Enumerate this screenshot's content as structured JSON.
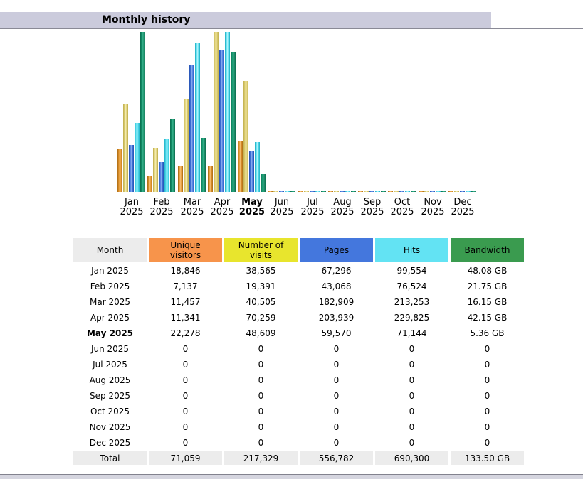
{
  "title": "Monthly history",
  "colors": {
    "title_bar_bg": "#CBCBDC",
    "divider": "#8A8A96",
    "series": {
      "unique_visitors": "#E2952E",
      "number_of_visits": "#DECF75",
      "pages": "#4477DD",
      "hits": "#55DDEE",
      "bandwidth": "#11926B"
    },
    "header_bg": {
      "month": "#ECECEC",
      "unique_visitors": "#F7944B",
      "number_of_visits": "#E8E52D",
      "pages": "#4477DD",
      "hits": "#63E3F3",
      "bandwidth": "#3A9B4F"
    },
    "total_row_bg": "#ECECEC"
  },
  "chart_data": {
    "type": "bar",
    "title": "Monthly history",
    "months": [
      "Jan",
      "Feb",
      "Mar",
      "Apr",
      "May",
      "Jun",
      "Jul",
      "Aug",
      "Sep",
      "Oct",
      "Nov",
      "Dec"
    ],
    "year": "2025",
    "current_month": "May 2025",
    "legend_position": "none",
    "grid": false,
    "series": [
      {
        "name": "Unique visitors",
        "values": [
          18846,
          7137,
          11457,
          11341,
          22278,
          0,
          0,
          0,
          0,
          0,
          0,
          0
        ]
      },
      {
        "name": "Number of visits",
        "values": [
          38565,
          19391,
          40505,
          70259,
          48609,
          0,
          0,
          0,
          0,
          0,
          0,
          0
        ]
      },
      {
        "name": "Pages",
        "values": [
          67296,
          43068,
          182909,
          203939,
          59570,
          0,
          0,
          0,
          0,
          0,
          0,
          0
        ]
      },
      {
        "name": "Hits",
        "values": [
          99554,
          76524,
          213253,
          229825,
          71144,
          0,
          0,
          0,
          0,
          0,
          0,
          0
        ]
      },
      {
        "name": "Bandwidth (GB)",
        "values": [
          48.08,
          21.75,
          16.15,
          42.15,
          5.36,
          0,
          0,
          0,
          0,
          0,
          0,
          0
        ]
      }
    ],
    "scale_groups_note": "visitors+visits share one scale; pages+hits share one scale; bandwidth has its own scale"
  },
  "table": {
    "headers": [
      {
        "key": "month",
        "label": "Month"
      },
      {
        "key": "unique_visitors",
        "label": "Unique visitors"
      },
      {
        "key": "number_of_visits",
        "label": "Number of visits"
      },
      {
        "key": "pages",
        "label": "Pages"
      },
      {
        "key": "hits",
        "label": "Hits"
      },
      {
        "key": "bandwidth",
        "label": "Bandwidth"
      }
    ],
    "rows": [
      {
        "month": "Jan 2025",
        "bold": false,
        "values": [
          "18,846",
          "38,565",
          "67,296",
          "99,554",
          "48.08 GB"
        ]
      },
      {
        "month": "Feb 2025",
        "bold": false,
        "values": [
          "7,137",
          "19,391",
          "43,068",
          "76,524",
          "21.75 GB"
        ]
      },
      {
        "month": "Mar 2025",
        "bold": false,
        "values": [
          "11,457",
          "40,505",
          "182,909",
          "213,253",
          "16.15 GB"
        ]
      },
      {
        "month": "Apr 2025",
        "bold": false,
        "values": [
          "11,341",
          "70,259",
          "203,939",
          "229,825",
          "42.15 GB"
        ]
      },
      {
        "month": "May 2025",
        "bold": true,
        "values": [
          "22,278",
          "48,609",
          "59,570",
          "71,144",
          "5.36 GB"
        ]
      },
      {
        "month": "Jun 2025",
        "bold": false,
        "values": [
          "0",
          "0",
          "0",
          "0",
          "0"
        ]
      },
      {
        "month": "Jul 2025",
        "bold": false,
        "values": [
          "0",
          "0",
          "0",
          "0",
          "0"
        ]
      },
      {
        "month": "Aug 2025",
        "bold": false,
        "values": [
          "0",
          "0",
          "0",
          "0",
          "0"
        ]
      },
      {
        "month": "Sep 2025",
        "bold": false,
        "values": [
          "0",
          "0",
          "0",
          "0",
          "0"
        ]
      },
      {
        "month": "Oct 2025",
        "bold": false,
        "values": [
          "0",
          "0",
          "0",
          "0",
          "0"
        ]
      },
      {
        "month": "Nov 2025",
        "bold": false,
        "values": [
          "0",
          "0",
          "0",
          "0",
          "0"
        ]
      },
      {
        "month": "Dec 2025",
        "bold": false,
        "values": [
          "0",
          "0",
          "0",
          "0",
          "0"
        ]
      }
    ],
    "total": {
      "label": "Total",
      "values": [
        "71,059",
        "217,329",
        "556,782",
        "690,300",
        "133.50 GB"
      ]
    }
  }
}
